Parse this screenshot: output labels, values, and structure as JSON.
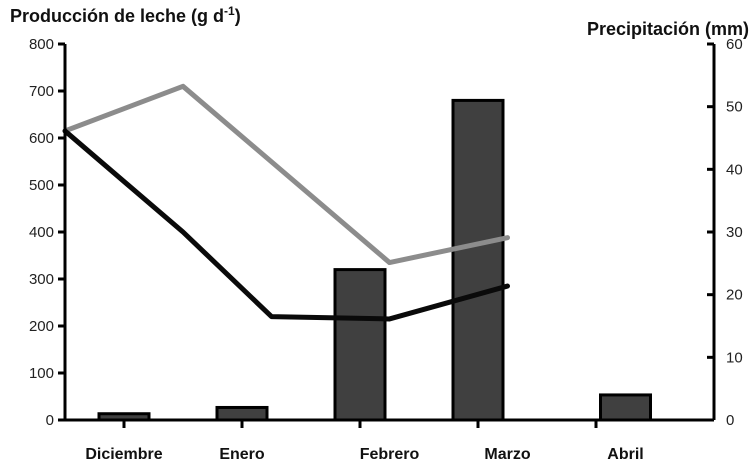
{
  "chart_data": {
    "type": "bar",
    "categories": [
      "Diciembre",
      "Enero",
      "Febrero",
      "Marzo",
      "Abril"
    ],
    "y_left": {
      "label": "Producción de leche (g d",
      "label_sup": "-1",
      "label_end": ")",
      "range": [
        0,
        800
      ],
      "ticks": [
        0,
        100,
        200,
        300,
        400,
        500,
        600,
        700,
        800
      ]
    },
    "y_right": {
      "label": "Precipitación (mm)",
      "range": [
        0,
        60
      ],
      "ticks": [
        0,
        10,
        20,
        30,
        40,
        50,
        60
      ]
    },
    "bars": {
      "axis": "right",
      "values": [
        1,
        2,
        24,
        51,
        4
      ],
      "color": "#404040"
    },
    "lines": [
      {
        "axis": "left",
        "color": "#8c8c8c",
        "x_positions": [
          0,
          1,
          2.75,
          3.75
        ],
        "values": [
          615,
          710,
          335,
          388
        ]
      },
      {
        "axis": "left",
        "color": "#0a0a0a",
        "x_positions": [
          0,
          1,
          1.75,
          2.75,
          3.75
        ],
        "values": [
          615,
          400,
          220,
          215,
          285
        ]
      }
    ],
    "category_tick_positions": [
      0.5,
      1.5,
      2.5,
      3.5,
      4.5
    ],
    "grid": false
  }
}
